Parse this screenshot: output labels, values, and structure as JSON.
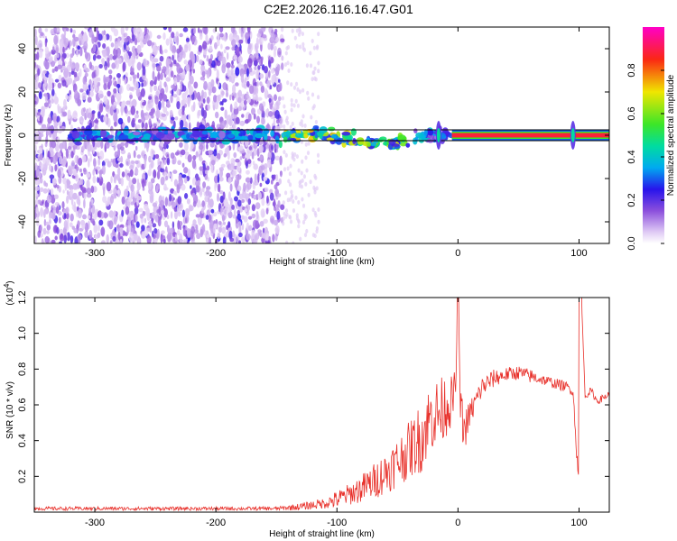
{
  "title": "C2E2.2026.116.16.47.G01",
  "chart_data": [
    {
      "type": "heatmap",
      "xlabel": "Height of straight line (km)",
      "ylabel": "Frequency (Hz)",
      "xlim": [
        -350,
        125
      ],
      "ylim": [
        -50,
        50
      ],
      "xticks": [
        -300,
        -200,
        -100,
        0,
        100
      ],
      "yticks": [
        -40,
        -20,
        0,
        20,
        40
      ],
      "description_bands": {
        "noise_region_x": [
          -350,
          -145
        ],
        "sparse_noise_x": [
          -145,
          -115
        ],
        "signal_track_x": [
          -320,
          125
        ],
        "strong_line_x": [
          -5,
          125
        ],
        "strong_line_freq": 0,
        "spike_x": [
          -16,
          95
        ]
      },
      "colorbar": {
        "label": "Normalized spectral amplitude",
        "range": [
          0,
          1
        ],
        "ticks": [
          0.0,
          0.2,
          0.4,
          0.6,
          0.8
        ],
        "tick_labels": [
          "0.0",
          "0.2",
          "0.4",
          "0.6",
          "0.8"
        ]
      }
    },
    {
      "type": "line",
      "xlabel": "Height of straight line (km)",
      "ylabel": "SNR (10 * v/v)",
      "scale_label": "(x10",
      "scale_exp": "4",
      "scale_close": ")",
      "xlim": [
        -350,
        125
      ],
      "ylim": [
        0,
        1.2
      ],
      "xticks": [
        -300,
        -200,
        -100,
        0,
        100
      ],
      "yticks": [
        0.2,
        0.4,
        0.6,
        0.8,
        1.0,
        1.2
      ],
      "ytick_labels": [
        "0.2",
        "0.4",
        "0.6",
        "0.8",
        "1.0",
        "1.2"
      ],
      "series": [
        {
          "name": "SNR",
          "color": "#e8302a",
          "x": [
            -350,
            -300,
            -250,
            -200,
            -150,
            -130,
            -110,
            -100,
            -90,
            -80,
            -70,
            -60,
            -50,
            -40,
            -30,
            -25,
            -20,
            -15,
            -10,
            -5,
            -2,
            0,
            2,
            5,
            10,
            20,
            30,
            40,
            50,
            60,
            70,
            80,
            90,
            95,
            98,
            100,
            102,
            105,
            110,
            115,
            120,
            125
          ],
          "y": [
            0.02,
            0.02,
            0.02,
            0.02,
            0.02,
            0.03,
            0.05,
            0.07,
            0.1,
            0.13,
            0.17,
            0.22,
            0.28,
            0.35,
            0.42,
            0.5,
            0.55,
            0.55,
            0.6,
            0.62,
            0.7,
            1.2,
            0.6,
            0.45,
            0.55,
            0.7,
            0.75,
            0.77,
            0.78,
            0.76,
            0.74,
            0.72,
            0.7,
            0.68,
            0.35,
            0.15,
            1.2,
            0.65,
            0.68,
            0.62,
            0.64,
            0.66
          ],
          "noise_amplitude": [
            0.01,
            0.01,
            0.01,
            0.01,
            0.01,
            0.02,
            0.03,
            0.05,
            0.06,
            0.08,
            0.1,
            0.12,
            0.14,
            0.16,
            0.2,
            0.2,
            0.2,
            0.2,
            0.18,
            0.14,
            0.1,
            0.0,
            0.12,
            0.12,
            0.08,
            0.06,
            0.05,
            0.04,
            0.04,
            0.04,
            0.03,
            0.03,
            0.03,
            0.03,
            0.05,
            0.0,
            0.0,
            0.02,
            0.02,
            0.02,
            0.02,
            0.02
          ]
        }
      ]
    }
  ]
}
